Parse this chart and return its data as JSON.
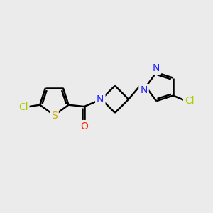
{
  "background_color": "#ebebeb",
  "bond_color": "#000000",
  "bond_width": 1.8,
  "atom_colors": {
    "Cl_green": "#aacc00",
    "S": "#ccaa00",
    "O": "#ff2200",
    "N": "#2222ff",
    "Cl_dark": "#333333",
    "C": "#000000"
  },
  "font_size_atom": 10,
  "fig_width": 3.0,
  "fig_height": 3.0
}
